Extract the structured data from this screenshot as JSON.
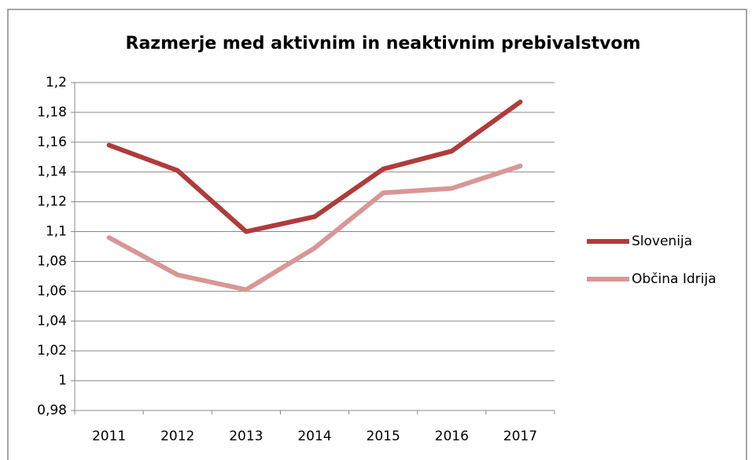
{
  "chart_data": {
    "type": "line",
    "title": "Razmerje med aktivnim in neaktivnim prebivalstvom",
    "categories": [
      "2011",
      "2012",
      "2013",
      "2014",
      "2015",
      "2016",
      "2017"
    ],
    "series": [
      {
        "name": "Slovenija",
        "color": "#b03b3b",
        "values": [
          1.158,
          1.141,
          1.1,
          1.11,
          1.142,
          1.154,
          1.187
        ]
      },
      {
        "name": "Občina Idrija",
        "color": "#d99695",
        "values": [
          1.096,
          1.071,
          1.061,
          1.089,
          1.126,
          1.129,
          1.144
        ]
      }
    ],
    "ylim": [
      0.98,
      1.2
    ],
    "yticks": [
      {
        "value": 0.98,
        "label": "0,98"
      },
      1,
      {
        "value": 1.02,
        "label": "1,02"
      },
      {
        "value": 1.04,
        "label": "1,04"
      },
      {
        "value": 1.06,
        "label": "1,06"
      },
      {
        "value": 1.08,
        "label": "1,08"
      },
      {
        "value": 1.1,
        "label": "1,1"
      },
      {
        "value": 1.12,
        "label": "1,12"
      },
      {
        "value": 1.14,
        "label": "1,14"
      },
      {
        "value": 1.16,
        "label": "1,16"
      },
      {
        "value": 1.18,
        "label": "1,18"
      },
      {
        "value": 1.2,
        "label": "1,2"
      }
    ],
    "grid": true,
    "legend": "right"
  }
}
